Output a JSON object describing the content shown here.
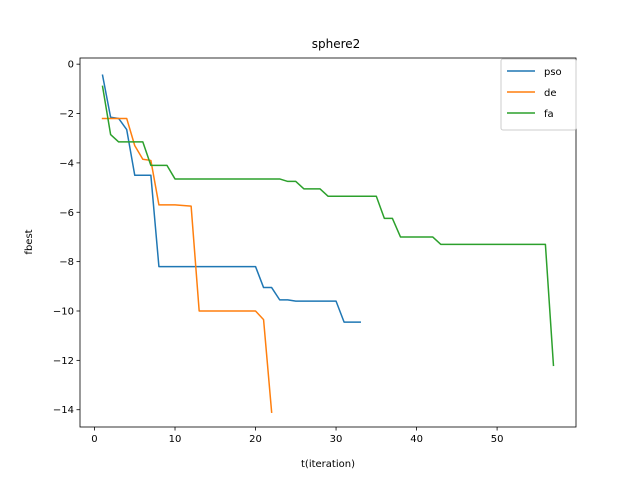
{
  "chart_data": {
    "type": "line",
    "title": "sphere2",
    "xlabel": "t(iteration)",
    "ylabel": "fbest",
    "xlim": [
      -1.8,
      59.8
    ],
    "ylim": [
      -14.7,
      0.25
    ],
    "xticks": [
      0,
      10,
      20,
      30,
      40,
      50
    ],
    "yticks": [
      0,
      -2,
      -4,
      -6,
      -8,
      -10,
      -12,
      -14
    ],
    "grid": false,
    "legend_position": "top-right",
    "series": [
      {
        "name": "pso",
        "color": "#1f77b4",
        "points": [
          [
            1,
            -0.45
          ],
          [
            2,
            -2.15
          ],
          [
            3,
            -2.2
          ],
          [
            4,
            -2.65
          ],
          [
            5,
            -4.5
          ],
          [
            6,
            -4.5
          ],
          [
            7,
            -4.5
          ],
          [
            8,
            -8.2
          ],
          [
            9,
            -8.2
          ],
          [
            10,
            -8.2
          ],
          [
            20,
            -8.2
          ],
          [
            21,
            -9.05
          ],
          [
            22,
            -9.05
          ],
          [
            23,
            -9.55
          ],
          [
            24,
            -9.55
          ],
          [
            25,
            -9.6
          ],
          [
            30,
            -9.6
          ],
          [
            31,
            -10.45
          ],
          [
            33,
            -10.45
          ]
        ]
      },
      {
        "name": "de",
        "color": "#ff7f0e",
        "points": [
          [
            1,
            -2.2
          ],
          [
            2,
            -2.2
          ],
          [
            3,
            -2.2
          ],
          [
            4,
            -2.2
          ],
          [
            5,
            -3.3
          ],
          [
            6,
            -3.85
          ],
          [
            7,
            -3.9
          ],
          [
            8,
            -5.7
          ],
          [
            9,
            -5.7
          ],
          [
            10,
            -5.7
          ],
          [
            12,
            -5.75
          ],
          [
            13,
            -10.0
          ],
          [
            14,
            -10.0
          ],
          [
            20,
            -10.0
          ],
          [
            21,
            -10.35
          ],
          [
            22,
            -14.1
          ]
        ]
      },
      {
        "name": "fa",
        "color": "#2ca02c",
        "points": [
          [
            1,
            -0.9
          ],
          [
            2,
            -2.85
          ],
          [
            3,
            -3.15
          ],
          [
            4,
            -3.15
          ],
          [
            5,
            -3.15
          ],
          [
            6,
            -3.15
          ],
          [
            7,
            -4.1
          ],
          [
            8,
            -4.1
          ],
          [
            9,
            -4.1
          ],
          [
            10,
            -4.65
          ],
          [
            20,
            -4.65
          ],
          [
            21,
            -4.65
          ],
          [
            22,
            -4.65
          ],
          [
            23,
            -4.65
          ],
          [
            24,
            -4.75
          ],
          [
            25,
            -4.75
          ],
          [
            26,
            -5.05
          ],
          [
            27,
            -5.05
          ],
          [
            28,
            -5.05
          ],
          [
            29,
            -5.35
          ],
          [
            30,
            -5.35
          ],
          [
            35,
            -5.35
          ],
          [
            36,
            -6.25
          ],
          [
            37,
            -6.25
          ],
          [
            38,
            -7.0
          ],
          [
            42,
            -7.0
          ],
          [
            43,
            -7.3
          ],
          [
            56,
            -7.3
          ],
          [
            57,
            -12.2
          ]
        ]
      }
    ]
  }
}
